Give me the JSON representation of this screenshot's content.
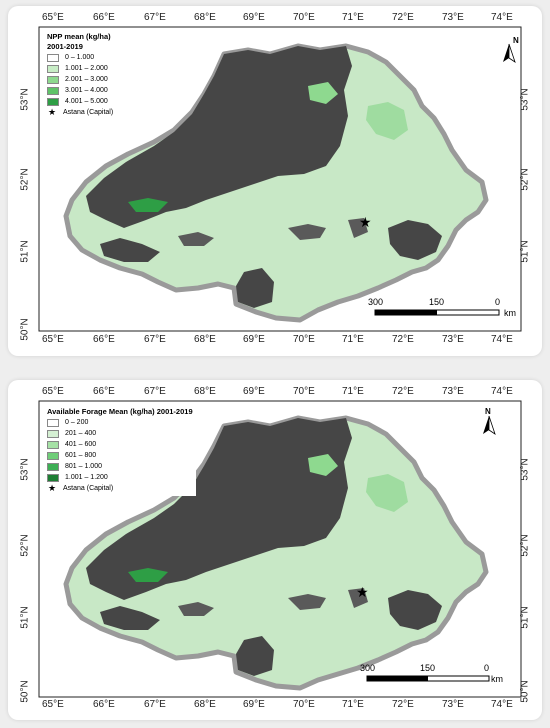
{
  "colors": {
    "dark": "#464646",
    "c1": "#dff5df",
    "c2": "#b6ebb6",
    "c3": "#8ed98f",
    "c4": "#5fc368",
    "c5": "#2e9e45"
  },
  "maps": [
    {
      "legend": {
        "title": "NPP mean (kg/ha)",
        "subtitle": "2001-2019",
        "items": [
          {
            "label": "0 – 1.000"
          },
          {
            "label": "1.001 – 2.000"
          },
          {
            "label": "2.001 – 3.000"
          },
          {
            "label": "3.001 – 4.000"
          },
          {
            "label": "4.001 – 5.000"
          }
        ],
        "capital": "Astana (Capital)"
      },
      "lon_ticks": [
        "65°E",
        "66°E",
        "67°E",
        "68°E",
        "69°E",
        "70°E",
        "71°E",
        "72°E",
        "73°E",
        "74°E"
      ],
      "lat_ticks": [
        "53°N",
        "52°N",
        "51°N",
        "50°N"
      ],
      "scale": {
        "a": "300",
        "b": "150",
        "c": "0",
        "unit": "km"
      },
      "north": "N"
    },
    {
      "legend": {
        "title": "Available Forage Mean (kg/ha) 2001-2019",
        "subtitle": "",
        "items": [
          {
            "label": "0 – 200"
          },
          {
            "label": "201 – 400"
          },
          {
            "label": "401 – 600"
          },
          {
            "label": "601 – 800"
          },
          {
            "label": "801 – 1.000"
          },
          {
            "label": "1.001 – 1.200"
          }
        ],
        "capital": "Astana (Capital)"
      },
      "lon_ticks": [
        "65°E",
        "66°E",
        "67°E",
        "68°E",
        "69°E",
        "70°E",
        "71°E",
        "72°E",
        "73°E",
        "74°E"
      ],
      "lat_ticks": [
        "53°N",
        "52°N",
        "51°N",
        "50°N"
      ],
      "scale": {
        "a": "300",
        "b": "150",
        "c": "0",
        "unit": "km"
      },
      "north": "N"
    }
  ]
}
